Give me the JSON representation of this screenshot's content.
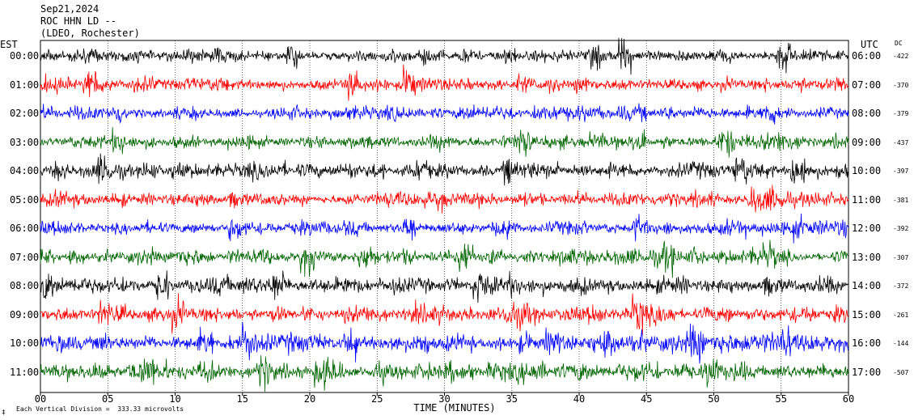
{
  "header": {
    "date": "Sep21,2024",
    "station": "ROC HHN LD --",
    "network": "(LDEO, Rochester)"
  },
  "left_axis_title": "EST",
  "right_axis_title": "UTC",
  "dc_title": "DC",
  "footer": {
    "scale_note": "Each Vertical Division =  333.33 microvolts",
    "corner_mark": "‡"
  },
  "chart_data": {
    "type": "line",
    "xlabel": "TIME (MINUTES)",
    "x_ticks": [
      "00",
      "05",
      "10",
      "15",
      "20",
      "25",
      "30",
      "35",
      "40",
      "45",
      "50",
      "55",
      "60"
    ],
    "xlim": [
      0,
      60
    ],
    "rows": [
      {
        "est": "00:00",
        "utc": "06:00",
        "dc": "-422",
        "color": "#000000",
        "amp": 1.0
      },
      {
        "est": "01:00",
        "utc": "07:00",
        "dc": "-370",
        "color": "#ff0000",
        "amp": 1.1
      },
      {
        "est": "02:00",
        "utc": "08:00",
        "dc": "-379",
        "color": "#0000ff",
        "amp": 1.0
      },
      {
        "est": "03:00",
        "utc": "09:00",
        "dc": "-437",
        "color": "#006400",
        "amp": 1.0
      },
      {
        "est": "04:00",
        "utc": "10:00",
        "dc": "-397",
        "color": "#000000",
        "amp": 1.1
      },
      {
        "est": "05:00",
        "utc": "11:00",
        "dc": "-381",
        "color": "#ff0000",
        "amp": 1.0
      },
      {
        "est": "06:00",
        "utc": "12:00",
        "dc": "-392",
        "color": "#0000ff",
        "amp": 1.0
      },
      {
        "est": "07:00",
        "utc": "13:00",
        "dc": "-307",
        "color": "#006400",
        "amp": 1.1
      },
      {
        "est": "08:00",
        "utc": "14:00",
        "dc": "-372",
        "color": "#000000",
        "amp": 1.2
      },
      {
        "est": "09:00",
        "utc": "15:00",
        "dc": "-261",
        "color": "#ff0000",
        "amp": 1.2
      },
      {
        "est": "10:00",
        "utc": "16:00",
        "dc": "-144",
        "color": "#0000ff",
        "amp": 1.3
      },
      {
        "est": "11:00",
        "utc": "17:00",
        "dc": "-507",
        "color": "#006400",
        "amp": 1.4
      }
    ]
  }
}
